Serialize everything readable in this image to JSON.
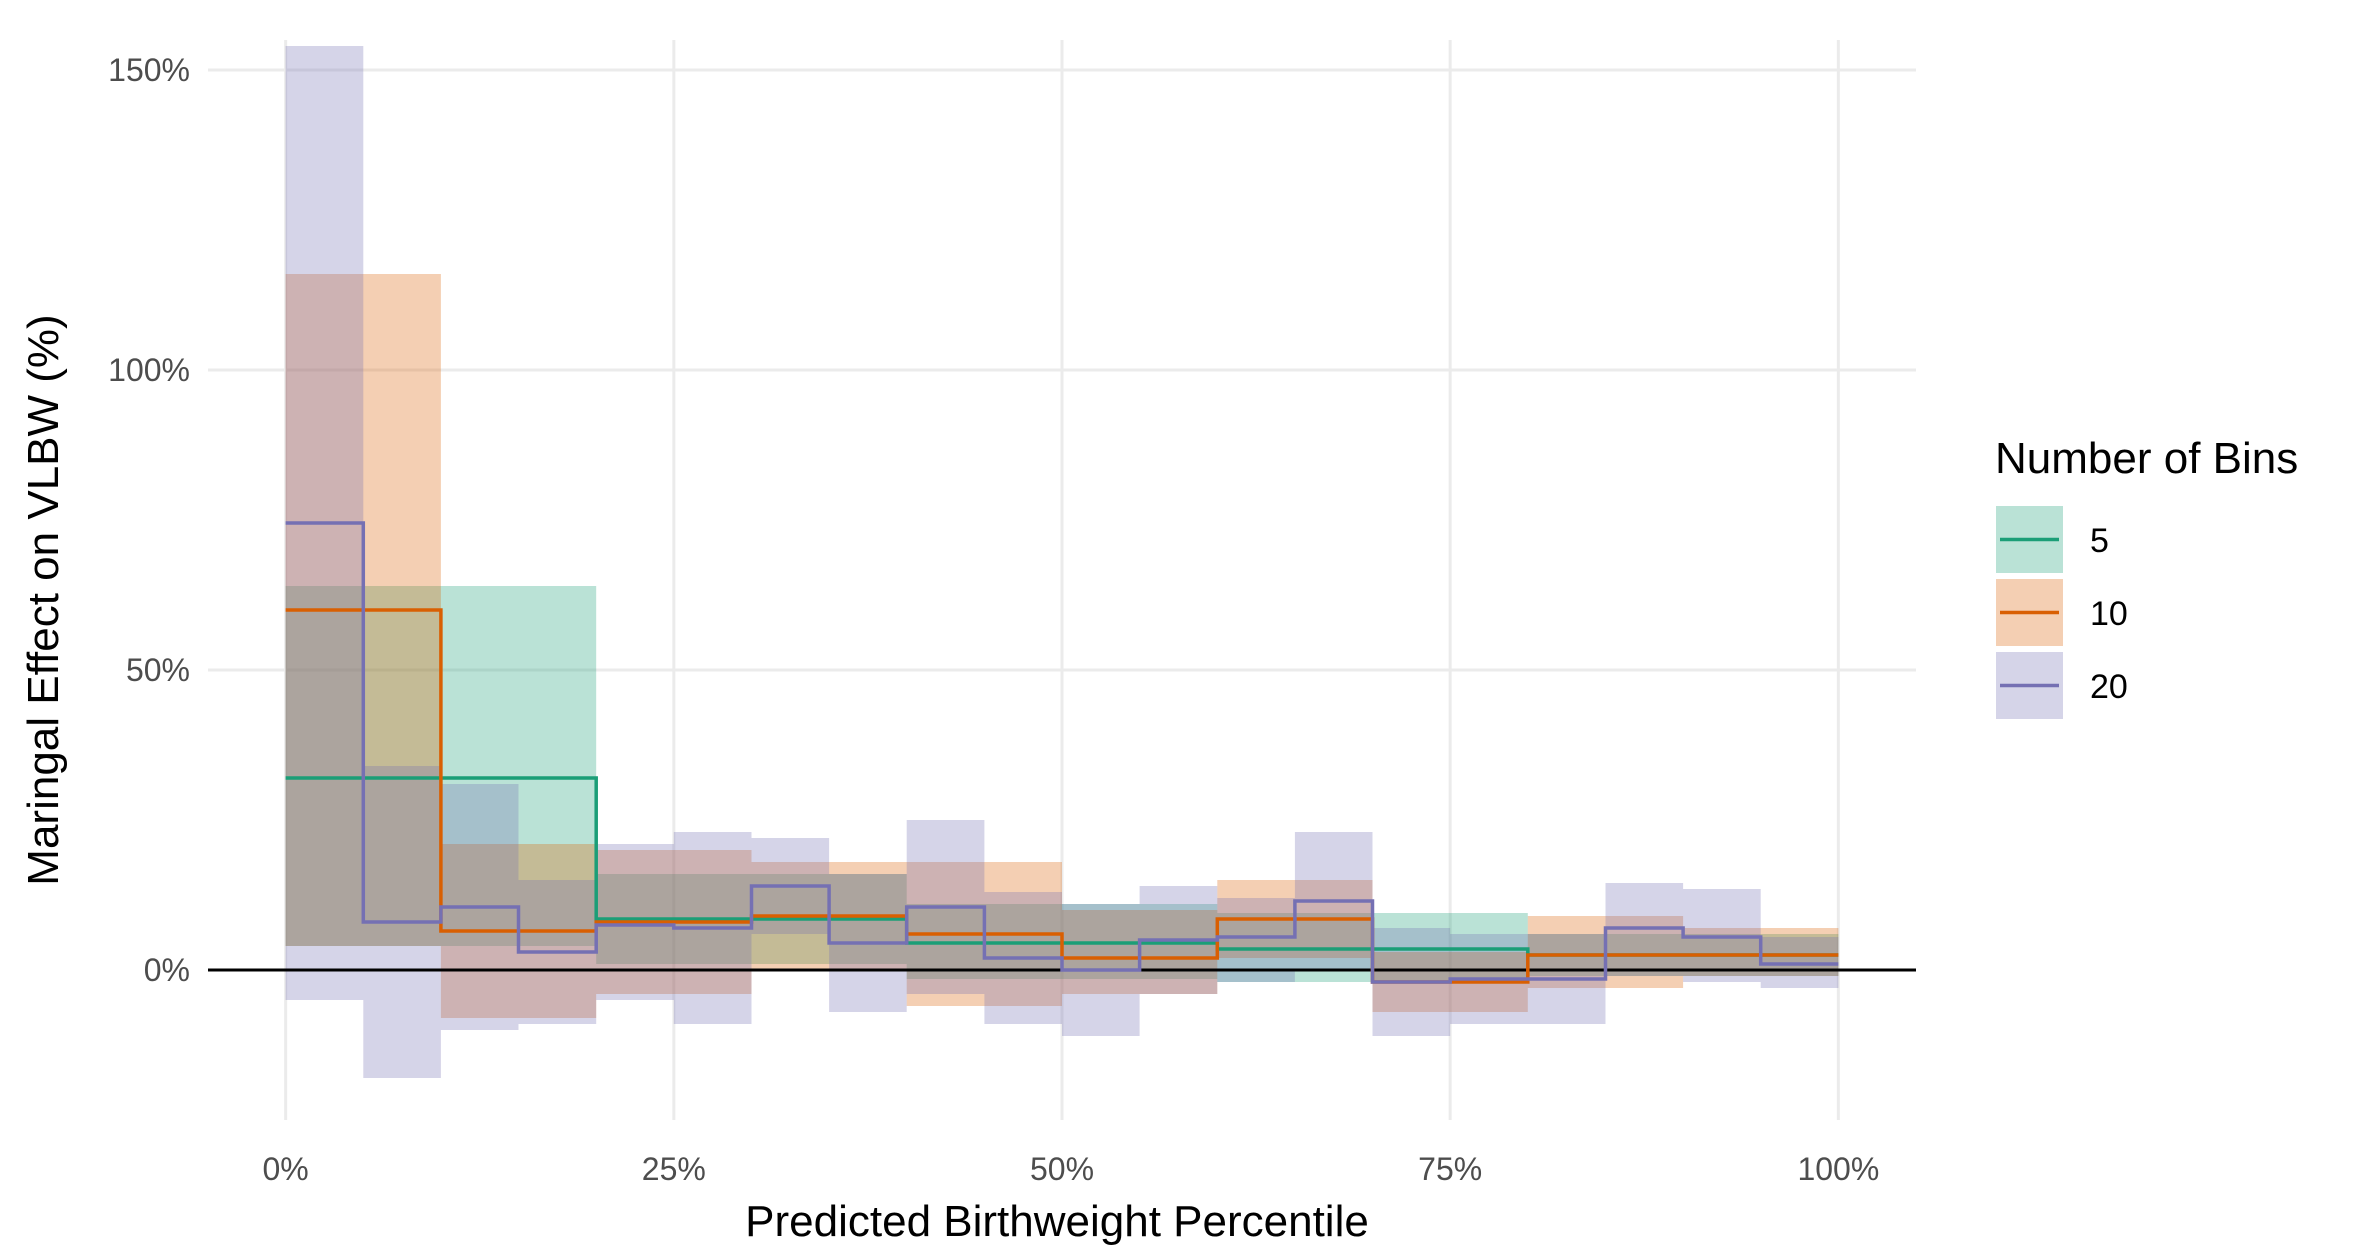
{
  "chart_data": {
    "type": "line",
    "subtype": "step-with-confidence-bands",
    "xlabel": "Predicted Birthweight Percentile",
    "ylabel": "Maringal Effect on VLBW (%)",
    "xlim": [
      -5,
      105
    ],
    "ylim": [
      -25,
      155
    ],
    "x_ticks": [
      0,
      25,
      50,
      75,
      100
    ],
    "x_tick_labels": [
      "0%",
      "25%",
      "50%",
      "75%",
      "100%"
    ],
    "y_ticks": [
      0,
      50,
      100,
      150
    ],
    "y_tick_labels": [
      "0%",
      "50%",
      "100%",
      "150%"
    ],
    "reference_line_y": 0,
    "grid": true,
    "legend": {
      "title": "Number of Bins",
      "placement": "right",
      "entries": [
        "5",
        "10",
        "20"
      ]
    },
    "series": [
      {
        "name": "5",
        "color": "#1b9e77",
        "bins": [
          {
            "x0": 0,
            "x1": 20,
            "est": 32,
            "lo": 4,
            "hi": 64
          },
          {
            "x0": 20,
            "x1": 40,
            "est": 8.5,
            "lo": 1,
            "hi": 16
          },
          {
            "x0": 40,
            "x1": 60,
            "est": 4.5,
            "lo": -1.5,
            "hi": 11
          },
          {
            "x0": 60,
            "x1": 80,
            "est": 3.5,
            "lo": -2,
            "hi": 9.5
          },
          {
            "x0": 80,
            "x1": 100,
            "est": 2.5,
            "lo": -1,
            "hi": 6
          }
        ]
      },
      {
        "name": "10",
        "color": "#d95f02",
        "bins": [
          {
            "x0": 0,
            "x1": 10,
            "est": 60,
            "lo": 4,
            "hi": 116
          },
          {
            "x0": 10,
            "x1": 20,
            "est": 6.5,
            "lo": -8,
            "hi": 21
          },
          {
            "x0": 20,
            "x1": 30,
            "est": 8,
            "lo": -4,
            "hi": 20
          },
          {
            "x0": 30,
            "x1": 40,
            "est": 9,
            "lo": 0,
            "hi": 18
          },
          {
            "x0": 40,
            "x1": 50,
            "est": 6,
            "lo": -6,
            "hi": 18
          },
          {
            "x0": 50,
            "x1": 60,
            "est": 2,
            "lo": -4,
            "hi": 10
          },
          {
            "x0": 60,
            "x1": 70,
            "est": 8.5,
            "lo": 2,
            "hi": 15
          },
          {
            "x0": 70,
            "x1": 80,
            "est": -2,
            "lo": -7,
            "hi": 3
          },
          {
            "x0": 80,
            "x1": 90,
            "est": 2.5,
            "lo": -3,
            "hi": 9
          },
          {
            "x0": 90,
            "x1": 100,
            "est": 2.5,
            "lo": -1,
            "hi": 7
          }
        ]
      },
      {
        "name": "20",
        "color": "#7570b3",
        "bins": [
          {
            "x0": 0,
            "x1": 5,
            "est": 74.5,
            "lo": -5,
            "hi": 154
          },
          {
            "x0": 5,
            "x1": 10,
            "est": 8,
            "lo": -18,
            "hi": 34
          },
          {
            "x0": 10,
            "x1": 15,
            "est": 10.5,
            "lo": -10,
            "hi": 31
          },
          {
            "x0": 15,
            "x1": 20,
            "est": 3,
            "lo": -9,
            "hi": 15
          },
          {
            "x0": 20,
            "x1": 25,
            "est": 7.5,
            "lo": -5,
            "hi": 21
          },
          {
            "x0": 25,
            "x1": 30,
            "est": 7,
            "lo": -9,
            "hi": 23
          },
          {
            "x0": 30,
            "x1": 35,
            "est": 14,
            "lo": 6,
            "hi": 22
          },
          {
            "x0": 35,
            "x1": 40,
            "est": 4.5,
            "lo": -7,
            "hi": 16
          },
          {
            "x0": 40,
            "x1": 45,
            "est": 10.5,
            "lo": -4,
            "hi": 25
          },
          {
            "x0": 45,
            "x1": 50,
            "est": 2,
            "lo": -9,
            "hi": 13
          },
          {
            "x0": 50,
            "x1": 55,
            "est": 0,
            "lo": -11,
            "hi": 11
          },
          {
            "x0": 55,
            "x1": 60,
            "est": 5,
            "lo": -4,
            "hi": 14
          },
          {
            "x0": 60,
            "x1": 65,
            "est": 5.5,
            "lo": -2,
            "hi": 12
          },
          {
            "x0": 65,
            "x1": 70,
            "est": 11.5,
            "lo": 0,
            "hi": 23
          },
          {
            "x0": 70,
            "x1": 75,
            "est": -2,
            "lo": -11,
            "hi": 7
          },
          {
            "x0": 75,
            "x1": 80,
            "est": -1.5,
            "lo": -9,
            "hi": 6
          },
          {
            "x0": 80,
            "x1": 85,
            "est": -1.5,
            "lo": -9,
            "hi": 6
          },
          {
            "x0": 85,
            "x1": 90,
            "est": 7,
            "lo": -1,
            "hi": 14.5
          },
          {
            "x0": 90,
            "x1": 95,
            "est": 5.5,
            "lo": -2,
            "hi": 13.5
          },
          {
            "x0": 95,
            "x1": 100,
            "est": 1,
            "lo": -3,
            "hi": 5.5
          }
        ]
      }
    ]
  }
}
